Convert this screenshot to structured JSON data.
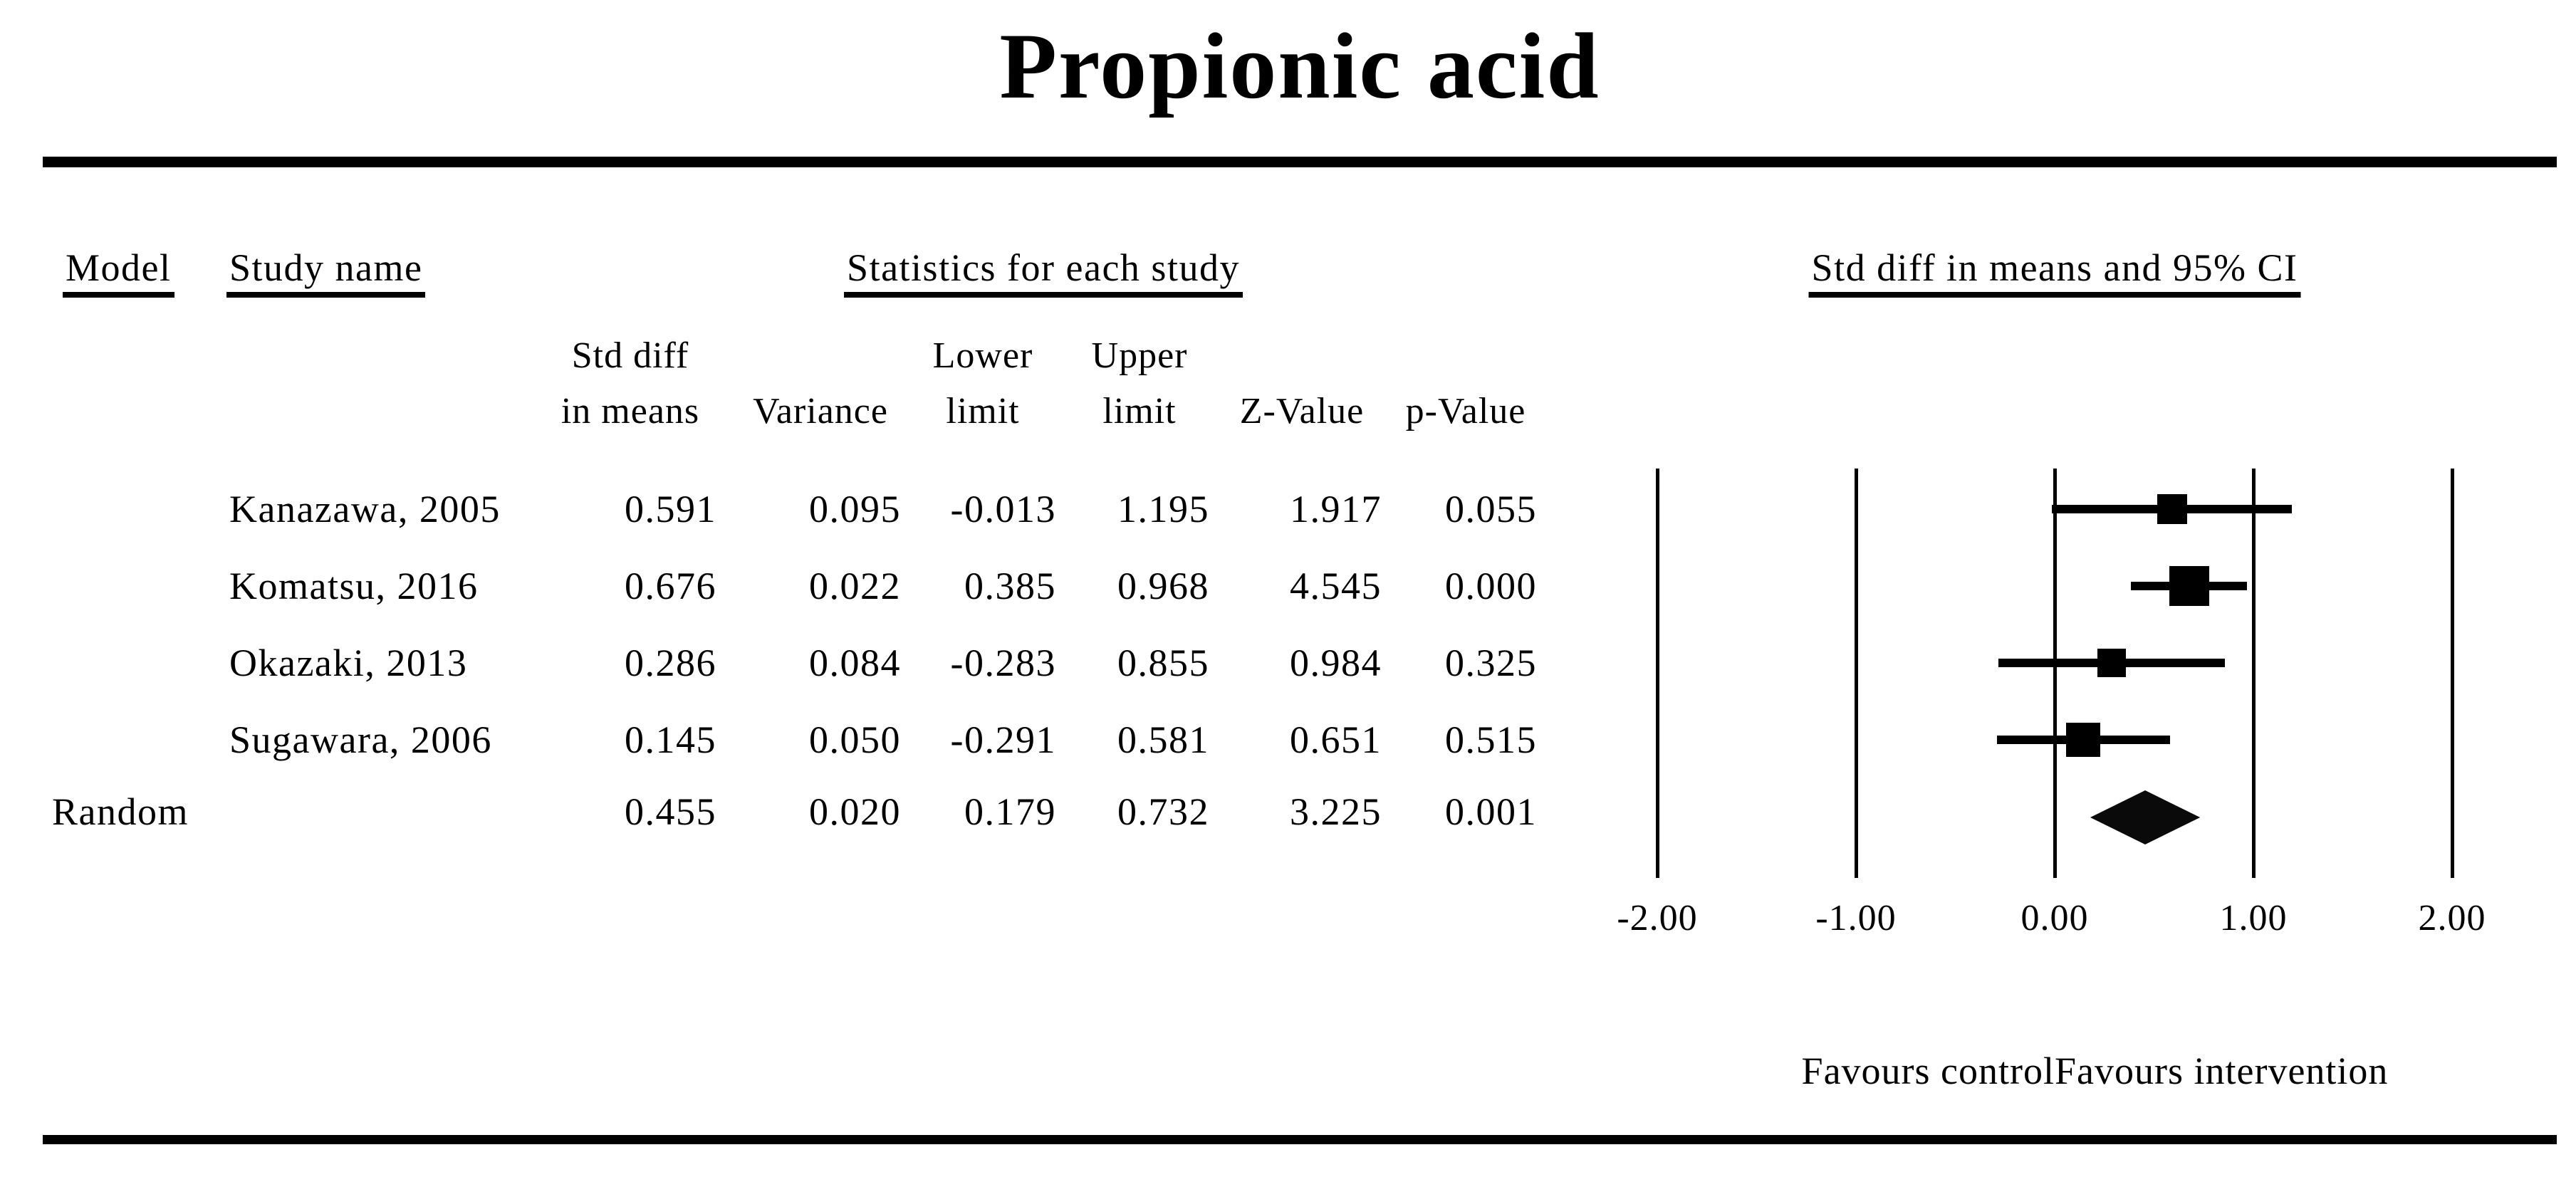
{
  "title": "Propionic acid",
  "table": {
    "model_header": "Model",
    "study_header": "Study name",
    "stats_group_header": "Statistics for each study",
    "plot_group_header": "Std diff in means and 95% CI",
    "columns": [
      {
        "line1": "Std diff",
        "line2": "in means"
      },
      {
        "line1": "",
        "line2": "Variance"
      },
      {
        "line1": "Lower",
        "line2": "limit"
      },
      {
        "line1": "Upper",
        "line2": "limit"
      },
      {
        "line1": "",
        "line2": "Z-Value"
      },
      {
        "line1": "",
        "line2": "p-Value"
      }
    ],
    "rows": [
      {
        "model": "",
        "study": "Kanazawa, 2005",
        "std_diff": "0.591",
        "variance": "0.095",
        "lower": "-0.013",
        "upper": "1.195",
        "z": "1.917",
        "p": "0.055"
      },
      {
        "model": "",
        "study": "Komatsu, 2016",
        "std_diff": "0.676",
        "variance": "0.022",
        "lower": "0.385",
        "upper": "0.968",
        "z": "4.545",
        "p": "0.000"
      },
      {
        "model": "",
        "study": "Okazaki, 2013",
        "std_diff": "0.286",
        "variance": "0.084",
        "lower": "-0.283",
        "upper": "0.855",
        "z": "0.984",
        "p": "0.325"
      },
      {
        "model": "",
        "study": "Sugawara, 2006",
        "std_diff": "0.145",
        "variance": "0.050",
        "lower": "-0.291",
        "upper": "0.581",
        "z": "0.651",
        "p": "0.515"
      }
    ],
    "summary_row": {
      "model": "Random",
      "study": "",
      "std_diff": "0.455",
      "variance": "0.020",
      "lower": "0.179",
      "upper": "0.732",
      "z": "3.225",
      "p": "0.001"
    }
  },
  "chart_data": {
    "type": "scatter",
    "subtype": "forest-plot",
    "title": "Std diff in means and 95% CI",
    "effect_measure": "Std diff in means",
    "x_axis": {
      "min": -2,
      "max": 2,
      "tick_values": [
        -2,
        -1,
        0,
        1,
        2
      ],
      "tick_labels": [
        "-2.00",
        "-1.00",
        "0.00",
        "1.00",
        "2.00"
      ],
      "grid": "vertical-lines"
    },
    "studies": [
      {
        "name": "Kanazawa, 2005",
        "est": 0.591,
        "lower": -0.013,
        "upper": 1.195,
        "z": 1.917,
        "p": 0.055,
        "marker_px": 42
      },
      {
        "name": "Komatsu, 2016",
        "est": 0.676,
        "lower": 0.385,
        "upper": 0.968,
        "z": 4.545,
        "p": 0.0,
        "marker_px": 56
      },
      {
        "name": "Okazaki, 2013",
        "est": 0.286,
        "lower": -0.283,
        "upper": 0.855,
        "z": 0.984,
        "p": 0.325,
        "marker_px": 40
      },
      {
        "name": "Sugawara, 2006",
        "est": 0.145,
        "lower": -0.291,
        "upper": 0.581,
        "z": 0.651,
        "p": 0.515,
        "marker_px": 48
      }
    ],
    "summary": {
      "name": "Random",
      "model": "random-effects",
      "est": 0.455,
      "lower": 0.179,
      "upper": 0.732,
      "z": 3.225,
      "p": 0.001
    },
    "favours_left": "Favours control",
    "favours_right": "Favours intervention",
    "marker_color": "#000000"
  }
}
